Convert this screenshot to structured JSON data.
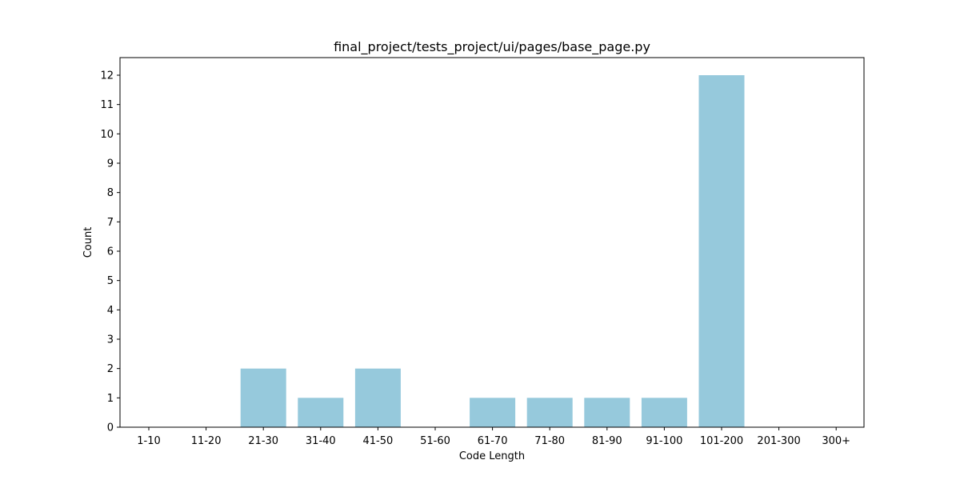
{
  "chart_data": {
    "type": "bar",
    "title": "final_project/tests_project/ui/pages/base_page.py",
    "xlabel": "Code Length",
    "ylabel": "Count",
    "categories": [
      "1-10",
      "11-20",
      "21-30",
      "31-40",
      "41-50",
      "51-60",
      "61-70",
      "71-80",
      "81-90",
      "91-100",
      "101-200",
      "201-300",
      "300+"
    ],
    "values": [
      0,
      0,
      2,
      1,
      2,
      0,
      1,
      1,
      1,
      1,
      12,
      0,
      0
    ],
    "ylim": [
      0,
      12.6
    ],
    "yticks": [
      0,
      1,
      2,
      3,
      4,
      5,
      6,
      7,
      8,
      9,
      10,
      11,
      12
    ],
    "bar_color": "#96c9dc",
    "grid": false
  }
}
